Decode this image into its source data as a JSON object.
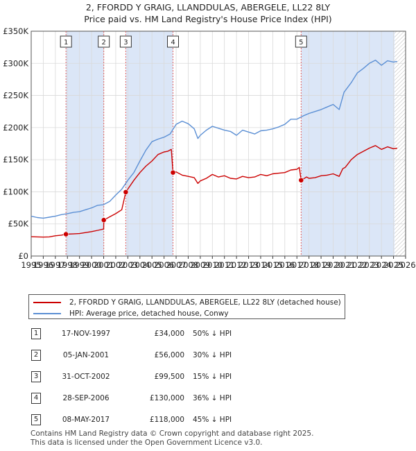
{
  "title": "2, FFORDD Y GRAIG, LLANDDULAS, ABERGELE, LL22 8LY",
  "subtitle": "Price paid vs. HM Land Registry's House Price Index (HPI)",
  "colors": {
    "property": "#cc0000",
    "hpi": "#5b8fd4",
    "shade": "#dbe6f7",
    "marker_line": "#e06060",
    "grid": "#d9d9d9"
  },
  "chart_data": {
    "type": "line",
    "title": "Price paid vs. HM Land Registry's House Price Index (HPI)",
    "xlim": [
      1995,
      2026
    ],
    "ylim": [
      0,
      350000
    ],
    "x_ticks": [
      "1995",
      "1996",
      "1997",
      "1998",
      "1999",
      "2000",
      "2001",
      "2002",
      "2003",
      "2004",
      "2005",
      "2006",
      "2007",
      "2008",
      "2009",
      "2010",
      "2011",
      "2012",
      "2013",
      "2014",
      "2015",
      "2016",
      "2017",
      "2018",
      "2019",
      "2020",
      "2021",
      "2022",
      "2023",
      "2024",
      "2025",
      "2026"
    ],
    "y_ticks": [
      {
        "value": 0,
        "label": "£0"
      },
      {
        "value": 50000,
        "label": "£50K"
      },
      {
        "value": 100000,
        "label": "£100K"
      },
      {
        "value": 150000,
        "label": "£150K"
      },
      {
        "value": 200000,
        "label": "£200K"
      },
      {
        "value": 250000,
        "label": "£250K"
      },
      {
        "value": 300000,
        "label": "£300K"
      },
      {
        "value": 350000,
        "label": "£350K"
      }
    ],
    "grid": true,
    "forecast_from": 2025.08,
    "series": [
      {
        "name": "2, FFORDD Y GRAIG, LLANDDULAS, ABERGELE, LL22 8LY (detached house)",
        "points": [
          [
            1995.0,
            30000
          ],
          [
            1996.0,
            29500
          ],
          [
            1996.5,
            29800
          ],
          [
            1997.0,
            31500
          ],
          [
            1997.5,
            32500
          ],
          [
            1997.88,
            34000
          ],
          [
            1998.5,
            34500
          ],
          [
            1999.0,
            35000
          ],
          [
            1999.5,
            36500
          ],
          [
            2000.0,
            38000
          ],
          [
            2000.5,
            40000
          ],
          [
            2001.0,
            42000
          ],
          [
            2001.01,
            56000
          ],
          [
            2001.5,
            61000
          ],
          [
            2002.0,
            66000
          ],
          [
            2002.5,
            72000
          ],
          [
            2002.83,
            99500
          ],
          [
            2003.5,
            118000
          ],
          [
            2004.0,
            130000
          ],
          [
            2004.5,
            140000
          ],
          [
            2005.0,
            148000
          ],
          [
            2005.5,
            158000
          ],
          [
            2006.0,
            162000
          ],
          [
            2006.3,
            163000
          ],
          [
            2006.6,
            166000
          ],
          [
            2006.74,
            130000
          ],
          [
            2007.0,
            131000
          ],
          [
            2007.5,
            126000
          ],
          [
            2008.0,
            124000
          ],
          [
            2008.5,
            122000
          ],
          [
            2008.8,
            113000
          ],
          [
            2009.0,
            117000
          ],
          [
            2009.5,
            121000
          ],
          [
            2010.0,
            127000
          ],
          [
            2010.5,
            123000
          ],
          [
            2011.0,
            125000
          ],
          [
            2011.5,
            121000
          ],
          [
            2012.0,
            120000
          ],
          [
            2012.5,
            124000
          ],
          [
            2013.0,
            122000
          ],
          [
            2013.5,
            123000
          ],
          [
            2014.0,
            127000
          ],
          [
            2014.5,
            125000
          ],
          [
            2015.0,
            128000
          ],
          [
            2015.5,
            129000
          ],
          [
            2016.0,
            130000
          ],
          [
            2016.5,
            134000
          ],
          [
            2017.0,
            135000
          ],
          [
            2017.2,
            138000
          ],
          [
            2017.35,
            118000
          ],
          [
            2017.8,
            123000
          ],
          [
            2018.0,
            121000
          ],
          [
            2018.5,
            122000
          ],
          [
            2019.0,
            125000
          ],
          [
            2019.5,
            126000
          ],
          [
            2020.0,
            128000
          ],
          [
            2020.5,
            124000
          ],
          [
            2020.8,
            136000
          ],
          [
            2021.0,
            138000
          ],
          [
            2021.5,
            150000
          ],
          [
            2022.0,
            158000
          ],
          [
            2022.5,
            163000
          ],
          [
            2023.0,
            168000
          ],
          [
            2023.5,
            172000
          ],
          [
            2024.0,
            166000
          ],
          [
            2024.5,
            170000
          ],
          [
            2025.0,
            167000
          ],
          [
            2025.3,
            168000
          ]
        ]
      },
      {
        "name": "HPI: Average price, detached house, Conwy",
        "points": [
          [
            1995.0,
            62000
          ],
          [
            1995.5,
            60000
          ],
          [
            1996.0,
            59000
          ],
          [
            1996.5,
            60500
          ],
          [
            1997.0,
            62000
          ],
          [
            1997.5,
            64500
          ],
          [
            1998.0,
            66000
          ],
          [
            1998.5,
            68000
          ],
          [
            1999.0,
            69000
          ],
          [
            1999.5,
            72000
          ],
          [
            2000.0,
            75000
          ],
          [
            2000.5,
            79000
          ],
          [
            2001.0,
            80000
          ],
          [
            2001.5,
            85000
          ],
          [
            2002.0,
            95000
          ],
          [
            2002.5,
            104000
          ],
          [
            2003.0,
            118000
          ],
          [
            2003.5,
            130000
          ],
          [
            2004.0,
            148000
          ],
          [
            2004.5,
            165000
          ],
          [
            2005.0,
            178000
          ],
          [
            2005.5,
            182000
          ],
          [
            2006.0,
            185000
          ],
          [
            2006.5,
            190000
          ],
          [
            2007.0,
            205000
          ],
          [
            2007.5,
            210000
          ],
          [
            2008.0,
            206000
          ],
          [
            2008.5,
            198000
          ],
          [
            2008.8,
            183000
          ],
          [
            2009.0,
            188000
          ],
          [
            2009.5,
            196000
          ],
          [
            2010.0,
            202000
          ],
          [
            2010.5,
            199000
          ],
          [
            2011.0,
            196000
          ],
          [
            2011.5,
            194000
          ],
          [
            2012.0,
            188000
          ],
          [
            2012.5,
            196000
          ],
          [
            2013.0,
            193000
          ],
          [
            2013.5,
            190000
          ],
          [
            2014.0,
            195000
          ],
          [
            2014.5,
            196000
          ],
          [
            2015.0,
            198000
          ],
          [
            2015.5,
            201000
          ],
          [
            2016.0,
            205000
          ],
          [
            2016.5,
            213000
          ],
          [
            2017.0,
            213000
          ],
          [
            2017.5,
            218000
          ],
          [
            2018.0,
            222000
          ],
          [
            2018.5,
            225000
          ],
          [
            2019.0,
            228000
          ],
          [
            2019.5,
            232000
          ],
          [
            2020.0,
            236000
          ],
          [
            2020.5,
            228000
          ],
          [
            2020.9,
            255000
          ],
          [
            2021.5,
            270000
          ],
          [
            2022.0,
            285000
          ],
          [
            2022.5,
            292000
          ],
          [
            2023.0,
            300000
          ],
          [
            2023.5,
            305000
          ],
          [
            2024.0,
            297000
          ],
          [
            2024.5,
            304000
          ],
          [
            2025.0,
            302000
          ],
          [
            2025.3,
            303000
          ]
        ]
      }
    ],
    "sales": [
      {
        "id": "1",
        "date": "17-NOV-1997",
        "x": 1997.88,
        "price": 34000,
        "price_label": "£34,000",
        "hpi_rel": "50% ↓ HPI"
      },
      {
        "id": "2",
        "date": "05-JAN-2001",
        "x": 2001.01,
        "price": 56000,
        "price_label": "£56,000",
        "hpi_rel": "30% ↓ HPI"
      },
      {
        "id": "3",
        "date": "31-OCT-2002",
        "x": 2002.83,
        "price": 99500,
        "price_label": "£99,500",
        "hpi_rel": "15% ↓ HPI"
      },
      {
        "id": "4",
        "date": "28-SEP-2006",
        "x": 2006.74,
        "price": 130000,
        "price_label": "£130,000",
        "hpi_rel": "36% ↓ HPI"
      },
      {
        "id": "5",
        "date": "08-MAY-2017",
        "x": 2017.35,
        "price": 118000,
        "price_label": "£118,000",
        "hpi_rel": "45% ↓ HPI"
      }
    ],
    "shaded_ranges": [
      [
        1997.88,
        2001.01
      ],
      [
        2002.83,
        2006.74
      ],
      [
        2017.35,
        2025.08
      ]
    ]
  },
  "legend": {
    "property_label": "2, FFORDD Y GRAIG, LLANDDULAS, ABERGELE, LL22 8LY (detached house)",
    "hpi_label": "HPI: Average price, detached house, Conwy"
  },
  "footer": {
    "line1": "Contains HM Land Registry data © Crown copyright and database right 2025.",
    "line2": "This data is licensed under the Open Government Licence v3.0."
  }
}
